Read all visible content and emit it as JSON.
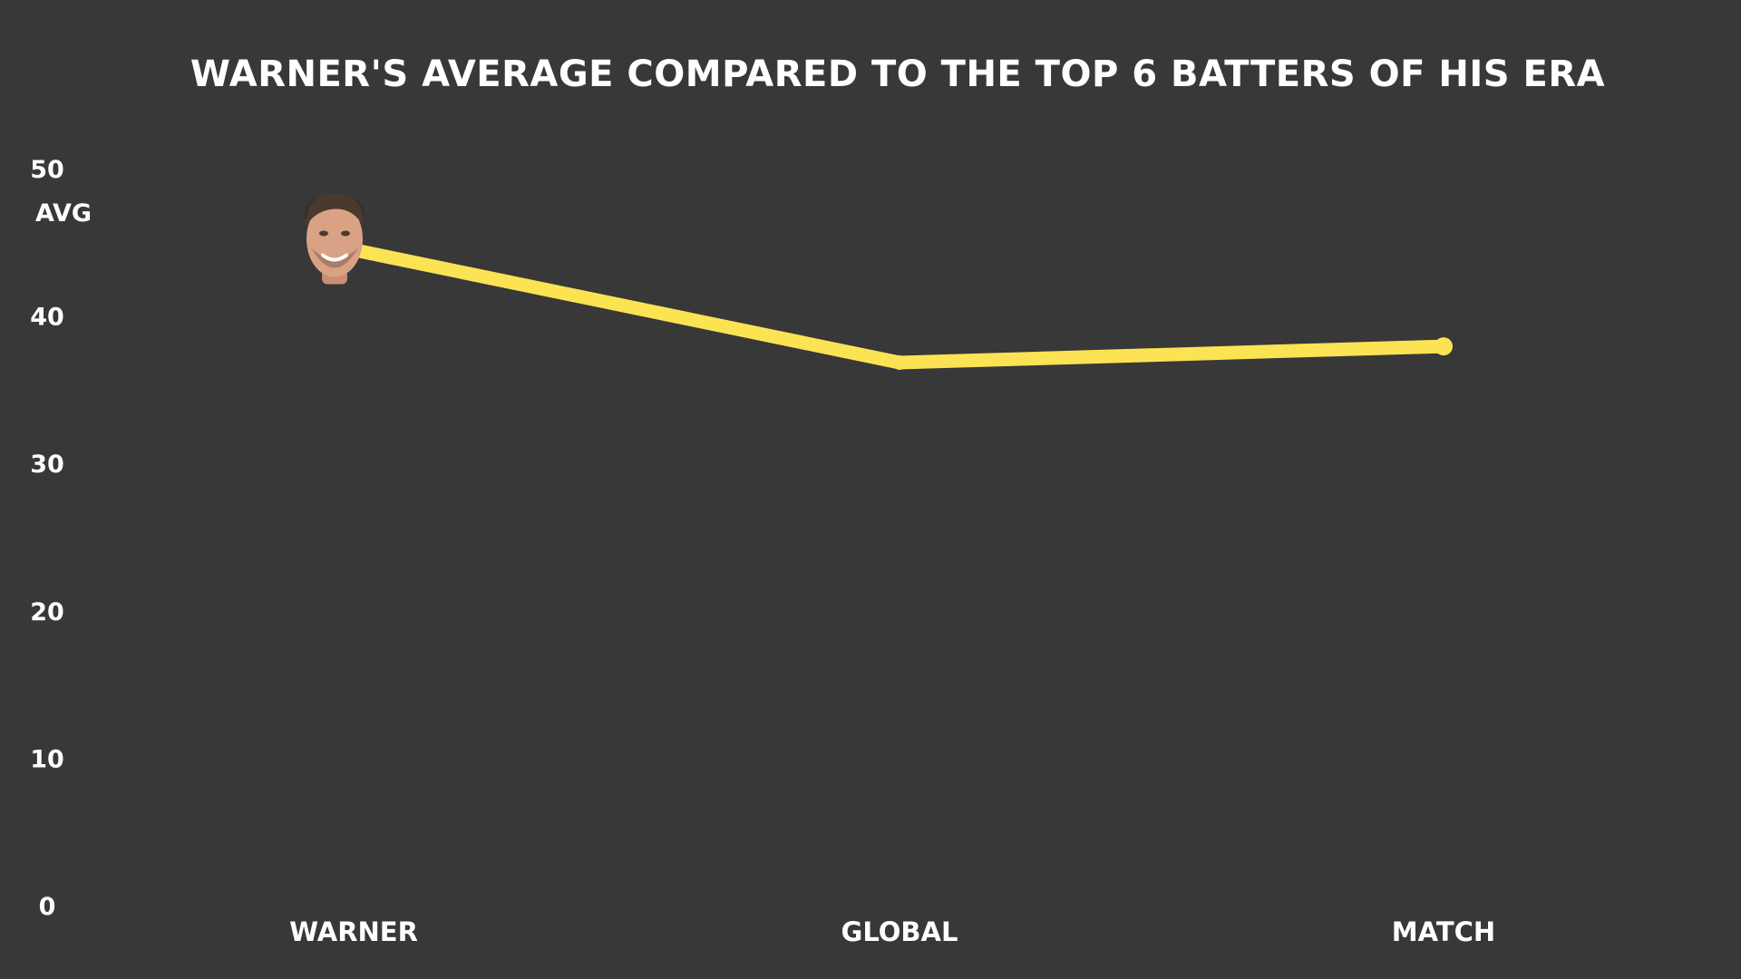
{
  "chart_data": {
    "type": "line",
    "title": "WARNER'S AVERAGE COMPARED TO THE TOP 6 BATTERS OF HIS ERA",
    "xlabel": "",
    "ylabel": "AVG",
    "ylim": [
      0,
      50
    ],
    "yticks": [
      "0",
      "10",
      "20",
      "30",
      "40",
      "50"
    ],
    "categories": [
      "WARNER",
      "GLOBAL",
      "MATCH"
    ],
    "series": [
      {
        "values": [
          44.8,
          36.9,
          38.0
        ]
      }
    ],
    "grid": false,
    "line_color": "#fbe354",
    "background": "#383838",
    "marker_icon": "player-face-icon"
  }
}
